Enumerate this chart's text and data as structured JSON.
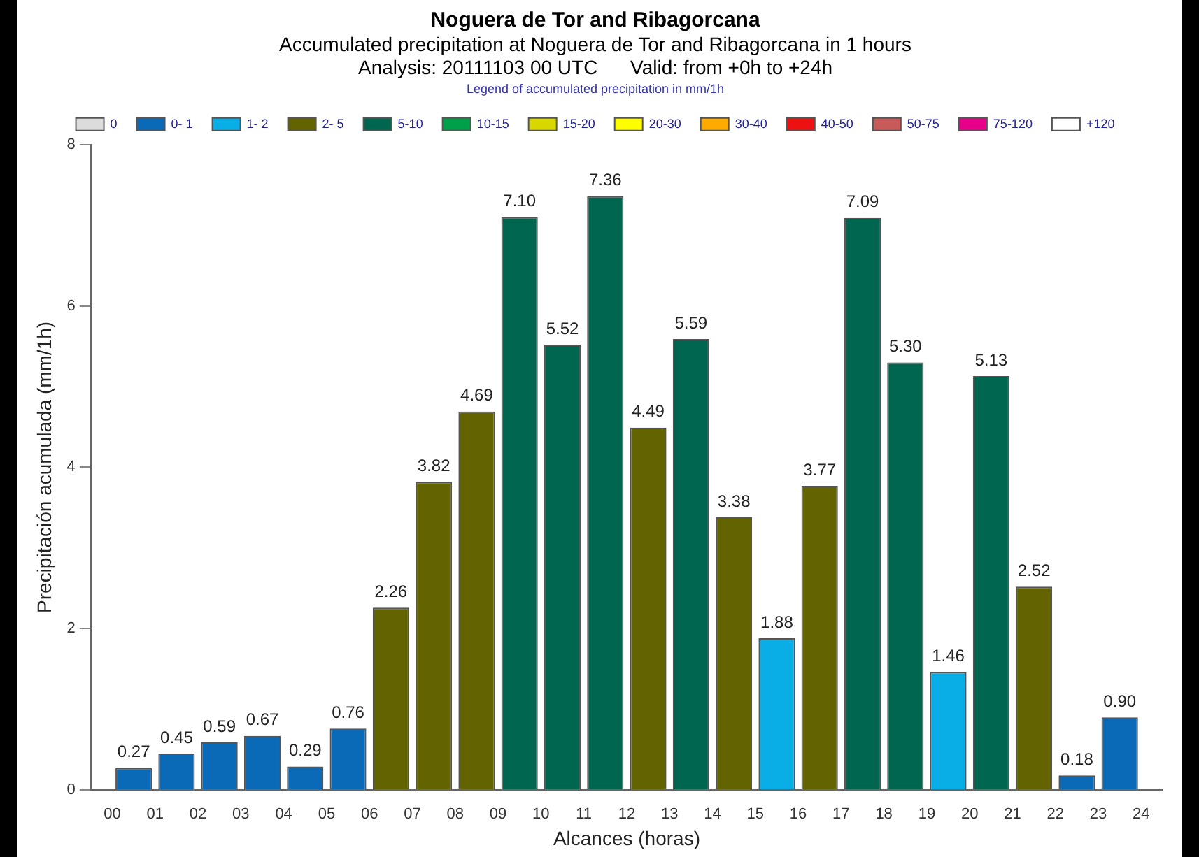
{
  "chart_data": {
    "type": "bar",
    "title": "Noguera de Tor and Ribagorcana",
    "subtitle": "Accumulated precipitation at Noguera de Tor and Ribagorcana in 1 hours\nAnalysis: 20111103 00 UTC      Valid: from +0h to +24h",
    "legend_title": "Legend of accumulated precipitation in mm/1h",
    "legend": "top",
    "xlabel": "Alcances (horas)",
    "ylabel": "Precipitación acumulada (mm/1h)",
    "x": [
      0.5,
      1.5,
      2.5,
      3.5,
      4.5,
      5.5,
      6.5,
      7.5,
      8.5,
      9.5,
      10.5,
      11.5,
      12.5,
      13.5,
      14.5,
      15.5,
      16.5,
      17.5,
      18.5,
      19.5,
      20.5,
      21.5,
      22.5,
      23.5
    ],
    "xlim": [
      0,
      24
    ],
    "xticks": [
      {
        "value": 0,
        "label": "00"
      },
      {
        "value": 1,
        "label": "01"
      },
      {
        "value": 2,
        "label": "02"
      },
      {
        "value": 3,
        "label": "03"
      },
      {
        "value": 4,
        "label": "04"
      },
      {
        "value": 5,
        "label": "05"
      },
      {
        "value": 6,
        "label": "06"
      },
      {
        "value": 7,
        "label": "07"
      },
      {
        "value": 8,
        "label": "08"
      },
      {
        "value": 9,
        "label": "09"
      },
      10,
      11,
      12,
      13,
      14,
      15,
      16,
      17,
      18,
      19,
      20,
      21,
      22,
      23,
      24
    ],
    "ylim": [
      0,
      8
    ],
    "yticks": [
      0,
      2,
      4,
      6,
      8
    ],
    "series": [
      {
        "name": "0",
        "color": "#dcdcdc",
        "values": [
          null,
          null,
          null,
          null,
          null,
          null,
          null,
          null,
          null,
          null,
          null,
          null,
          null,
          null,
          null,
          null,
          null,
          null,
          null,
          null,
          null,
          null,
          null,
          null
        ],
        "value_labels": [
          null,
          null,
          null,
          null,
          null,
          null,
          null,
          null,
          null,
          null,
          null,
          null,
          null,
          null,
          null,
          null,
          null,
          null,
          null,
          null,
          null,
          null,
          null,
          null
        ]
      },
      {
        "name": "0- 1",
        "color": "#0a6ab8",
        "values": [
          0.27,
          0.45,
          0.59,
          0.67,
          0.29,
          0.76,
          null,
          null,
          null,
          null,
          null,
          null,
          null,
          null,
          null,
          null,
          null,
          null,
          null,
          null,
          null,
          null,
          0.18,
          0.9
        ],
        "value_labels": [
          "0.27",
          "0.45",
          "0.59",
          "0.67",
          "0.29",
          "0.76",
          null,
          null,
          null,
          null,
          null,
          null,
          null,
          null,
          null,
          null,
          null,
          null,
          null,
          null,
          null,
          null,
          "0.18",
          "0.90"
        ]
      },
      {
        "name": "1- 2",
        "color": "#0aaee6",
        "values": [
          null,
          null,
          null,
          null,
          null,
          null,
          null,
          null,
          null,
          null,
          null,
          null,
          null,
          null,
          null,
          1.88,
          null,
          null,
          null,
          1.46,
          null,
          null,
          null,
          null
        ],
        "value_labels": [
          null,
          null,
          null,
          null,
          null,
          null,
          null,
          null,
          null,
          null,
          null,
          null,
          null,
          null,
          null,
          "1.88",
          null,
          null,
          null,
          "1.46",
          null,
          null,
          null,
          null
        ]
      },
      {
        "name": "2- 5",
        "color": "#636300",
        "values": [
          null,
          null,
          null,
          null,
          null,
          null,
          2.26,
          3.82,
          4.69,
          null,
          null,
          null,
          4.49,
          null,
          3.38,
          null,
          3.77,
          null,
          null,
          null,
          null,
          2.52,
          null,
          null
        ],
        "value_labels": [
          null,
          null,
          null,
          null,
          null,
          null,
          "2.26",
          "3.82",
          "4.69",
          null,
          null,
          null,
          "4.49",
          null,
          "3.38",
          null,
          "3.77",
          null,
          null,
          null,
          null,
          "2.52",
          null,
          null
        ]
      },
      {
        "name": "5-10",
        "color": "#00664f",
        "values": [
          null,
          null,
          null,
          null,
          null,
          null,
          null,
          null,
          null,
          7.1,
          5.52,
          7.36,
          null,
          5.59,
          null,
          null,
          null,
          7.09,
          5.3,
          null,
          5.13,
          null,
          null,
          null
        ],
        "value_labels": [
          null,
          null,
          null,
          null,
          null,
          null,
          null,
          null,
          null,
          "7.10",
          "5.52",
          "7.36",
          null,
          "5.59",
          null,
          null,
          null,
          "7.09",
          "5.30",
          null,
          "5.13",
          null,
          null,
          null
        ]
      },
      {
        "name": "10-15",
        "color": "#00a04a",
        "values": [
          null,
          null,
          null,
          null,
          null,
          null,
          null,
          null,
          null,
          null,
          null,
          null,
          null,
          null,
          null,
          null,
          null,
          null,
          null,
          null,
          null,
          null,
          null,
          null
        ],
        "value_labels": [
          null,
          null,
          null,
          null,
          null,
          null,
          null,
          null,
          null,
          null,
          null,
          null,
          null,
          null,
          null,
          null,
          null,
          null,
          null,
          null,
          null,
          null,
          null,
          null
        ]
      },
      {
        "name": "15-20",
        "color": "#d8d800",
        "values": [
          null,
          null,
          null,
          null,
          null,
          null,
          null,
          null,
          null,
          null,
          null,
          null,
          null,
          null,
          null,
          null,
          null,
          null,
          null,
          null,
          null,
          null,
          null,
          null
        ],
        "value_labels": [
          null,
          null,
          null,
          null,
          null,
          null,
          null,
          null,
          null,
          null,
          null,
          null,
          null,
          null,
          null,
          null,
          null,
          null,
          null,
          null,
          null,
          null,
          null,
          null
        ]
      },
      {
        "name": "20-30",
        "color": "#ffff00",
        "values": [
          null,
          null,
          null,
          null,
          null,
          null,
          null,
          null,
          null,
          null,
          null,
          null,
          null,
          null,
          null,
          null,
          null,
          null,
          null,
          null,
          null,
          null,
          null,
          null
        ],
        "value_labels": [
          null,
          null,
          null,
          null,
          null,
          null,
          null,
          null,
          null,
          null,
          null,
          null,
          null,
          null,
          null,
          null,
          null,
          null,
          null,
          null,
          null,
          null,
          null,
          null
        ]
      },
      {
        "name": "30-40",
        "color": "#ffaa00",
        "values": [
          null,
          null,
          null,
          null,
          null,
          null,
          null,
          null,
          null,
          null,
          null,
          null,
          null,
          null,
          null,
          null,
          null,
          null,
          null,
          null,
          null,
          null,
          null,
          null
        ],
        "value_labels": [
          null,
          null,
          null,
          null,
          null,
          null,
          null,
          null,
          null,
          null,
          null,
          null,
          null,
          null,
          null,
          null,
          null,
          null,
          null,
          null,
          null,
          null,
          null,
          null
        ]
      },
      {
        "name": "40-50",
        "color": "#ee1111",
        "values": [
          null,
          null,
          null,
          null,
          null,
          null,
          null,
          null,
          null,
          null,
          null,
          null,
          null,
          null,
          null,
          null,
          null,
          null,
          null,
          null,
          null,
          null,
          null,
          null
        ],
        "value_labels": [
          null,
          null,
          null,
          null,
          null,
          null,
          null,
          null,
          null,
          null,
          null,
          null,
          null,
          null,
          null,
          null,
          null,
          null,
          null,
          null,
          null,
          null,
          null,
          null
        ]
      },
      {
        "name": "50-75",
        "color": "#c85a5a",
        "values": [
          null,
          null,
          null,
          null,
          null,
          null,
          null,
          null,
          null,
          null,
          null,
          null,
          null,
          null,
          null,
          null,
          null,
          null,
          null,
          null,
          null,
          null,
          null,
          null
        ],
        "value_labels": [
          null,
          null,
          null,
          null,
          null,
          null,
          null,
          null,
          null,
          null,
          null,
          null,
          null,
          null,
          null,
          null,
          null,
          null,
          null,
          null,
          null,
          null,
          null,
          null
        ]
      },
      {
        "name": "75-120",
        "color": "#e8008a",
        "values": [
          null,
          null,
          null,
          null,
          null,
          null,
          null,
          null,
          null,
          null,
          null,
          null,
          null,
          null,
          null,
          null,
          null,
          null,
          null,
          null,
          null,
          null,
          null,
          null
        ],
        "value_labels": [
          null,
          null,
          null,
          null,
          null,
          null,
          null,
          null,
          null,
          null,
          null,
          null,
          null,
          null,
          null,
          null,
          null,
          null,
          null,
          null,
          null,
          null,
          null,
          null
        ]
      },
      {
        "name": "+120",
        "color": "#ffffff",
        "values": [
          null,
          null,
          null,
          null,
          null,
          null,
          null,
          null,
          null,
          null,
          null,
          null,
          null,
          null,
          null,
          null,
          null,
          null,
          null,
          null,
          null,
          null,
          null,
          null
        ],
        "value_labels": [
          null,
          null,
          null,
          null,
          null,
          null,
          null,
          null,
          null,
          null,
          null,
          null,
          null,
          null,
          null,
          null,
          null,
          null,
          null,
          null,
          null,
          null,
          null,
          null
        ]
      }
    ]
  }
}
